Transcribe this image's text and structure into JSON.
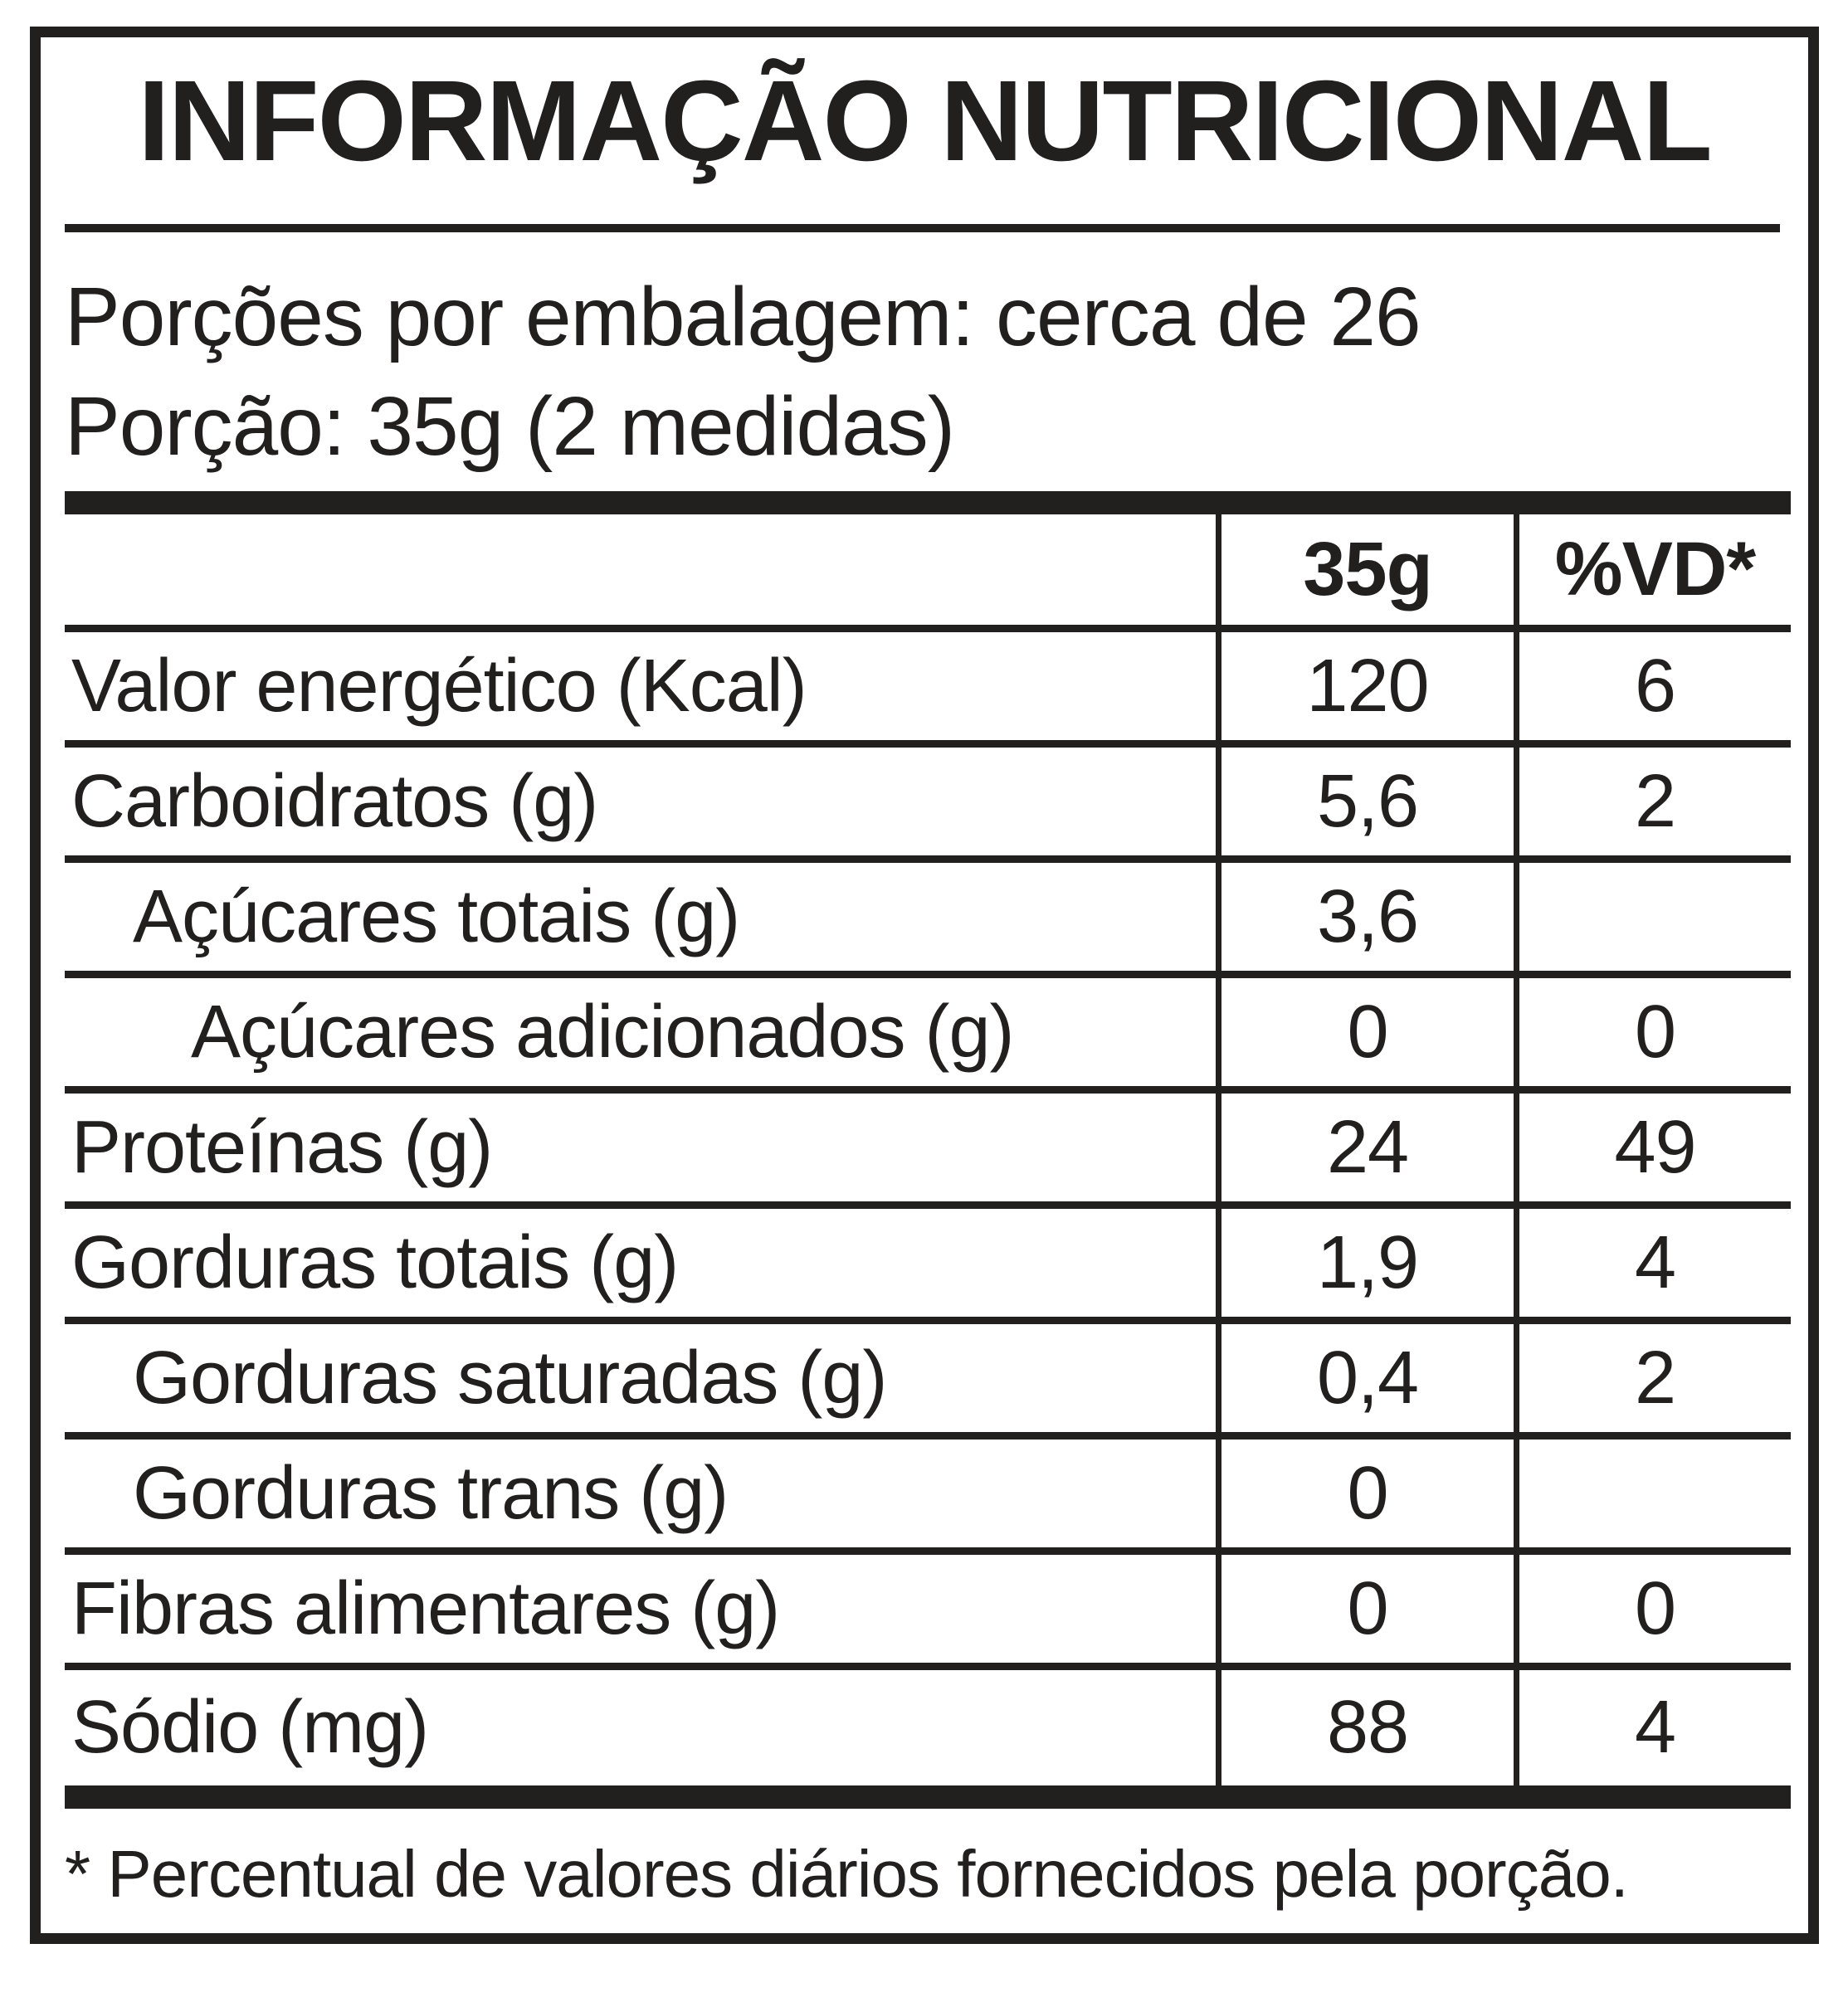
{
  "colors": {
    "ink": "#221f1f",
    "paper": "#ffffff"
  },
  "header": {
    "title": "INFORMAÇÃO NUTRICIONAL",
    "servings_per_package": "Porções por embalagem: cerca de 26",
    "portion": "Porção: 35g (2 medidas)"
  },
  "table": {
    "columns": {
      "amount": "35g",
      "daily_value": "%VD*"
    },
    "rows": [
      {
        "label": "Valor energético (Kcal)",
        "amount": "120",
        "dv": "6"
      },
      {
        "label": "Carboidratos (g)",
        "amount": "5,6",
        "dv": "2"
      },
      {
        "label": "Açúcares totais (g)",
        "amount": "3,6",
        "dv": ""
      },
      {
        "label": "Açúcares adicionados (g)",
        "amount": "0",
        "dv": "0"
      },
      {
        "label": "Proteínas (g)",
        "amount": "24",
        "dv": "49"
      },
      {
        "label": "Gorduras totais (g)",
        "amount": "1,9",
        "dv": "4"
      },
      {
        "label": "Gorduras saturadas (g)",
        "amount": "0,4",
        "dv": "2"
      },
      {
        "label": "Gorduras trans (g)",
        "amount": "0",
        "dv": ""
      },
      {
        "label": "Fibras alimentares (g)",
        "amount": "0",
        "dv": "0"
      },
      {
        "label": "Sódio (mg)",
        "amount": "88",
        "dv": "4"
      }
    ]
  },
  "footnote": "* Percentual de valores diários fornecidos pela porção."
}
